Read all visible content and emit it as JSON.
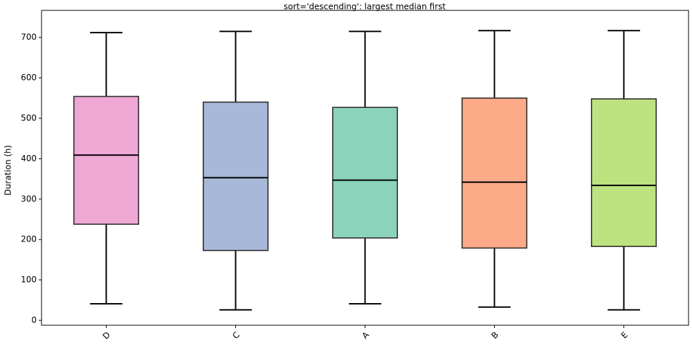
{
  "chart_data": {
    "type": "box",
    "title": "sort='descending': largest median first",
    "y_label": "Duration (h)",
    "categories": [
      "D",
      "C",
      "A",
      "B",
      "E"
    ],
    "boxes": [
      {
        "whislo": 41,
        "q1": 238,
        "med": 409,
        "q3": 554,
        "whishi": 712,
        "color": "#efa7d4"
      },
      {
        "whislo": 26,
        "q1": 173,
        "med": 353,
        "q3": 540,
        "whishi": 715,
        "color": "#a8b8d9"
      },
      {
        "whislo": 41,
        "q1": 204,
        "med": 347,
        "q3": 527,
        "whishi": 715,
        "color": "#8cd3bc"
      },
      {
        "whislo": 33,
        "q1": 179,
        "med": 342,
        "q3": 550,
        "whishi": 717,
        "color": "#fdaa89"
      },
      {
        "whislo": 26,
        "q1": 183,
        "med": 334,
        "q3": 548,
        "whishi": 717,
        "color": "#bde380"
      }
    ],
    "ylim": [
      -12,
      767
    ],
    "yticks": [
      0,
      100,
      200,
      300,
      400,
      500,
      600,
      700
    ],
    "grid": false
  }
}
